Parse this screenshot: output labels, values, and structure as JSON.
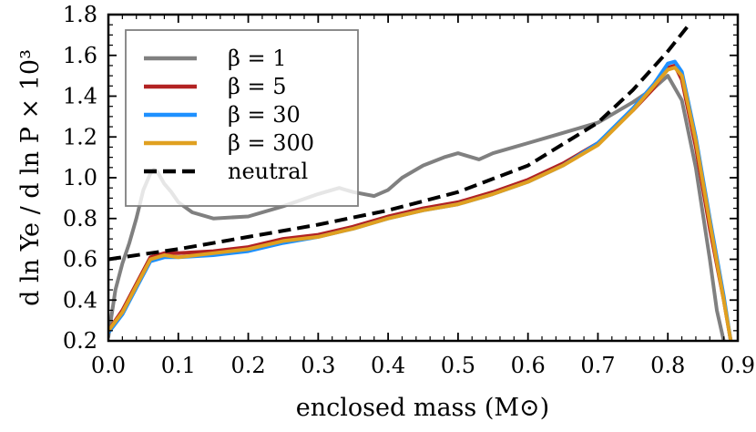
{
  "chart_data": {
    "type": "line",
    "xlabel": "enclosed mass (M⊙)",
    "ylabel": "d ln Ye / d ln P × 10³",
    "xlim": [
      0.0,
      0.9
    ],
    "ylim": [
      0.2,
      1.8
    ],
    "xticks": [
      0.0,
      0.1,
      0.2,
      0.3,
      0.4,
      0.5,
      0.6,
      0.7,
      0.8,
      0.9
    ],
    "xtick_labels": [
      "0.0",
      "0.1",
      "0.2",
      "0.3",
      "0.4",
      "0.5",
      "0.6",
      "0.7",
      "0.8",
      "0.9"
    ],
    "yticks": [
      0.2,
      0.4,
      0.6,
      0.8,
      1.0,
      1.2,
      1.4,
      1.6,
      1.8
    ],
    "ytick_labels": [
      "0.2",
      "0.4",
      "0.6",
      "0.8",
      "1.0",
      "1.2",
      "1.4",
      "1.6",
      "1.8"
    ],
    "grid": false,
    "legend_position": "top-left",
    "series": [
      {
        "name": "β = 1",
        "color": "#808080",
        "style": "solid",
        "x": [
          0.0,
          0.01,
          0.02,
          0.03,
          0.04,
          0.05,
          0.06,
          0.065,
          0.07,
          0.08,
          0.09,
          0.1,
          0.12,
          0.15,
          0.2,
          0.25,
          0.3,
          0.33,
          0.35,
          0.38,
          0.4,
          0.42,
          0.45,
          0.48,
          0.5,
          0.53,
          0.55,
          0.58,
          0.6,
          0.63,
          0.65,
          0.7,
          0.75,
          0.78,
          0.8,
          0.82,
          0.84,
          0.86,
          0.87,
          0.88
        ],
        "y": [
          0.22,
          0.45,
          0.58,
          0.68,
          0.8,
          0.94,
          1.02,
          1.04,
          1.03,
          0.97,
          0.93,
          0.88,
          0.83,
          0.8,
          0.81,
          0.86,
          0.92,
          0.95,
          0.93,
          0.91,
          0.94,
          1.0,
          1.06,
          1.1,
          1.12,
          1.09,
          1.12,
          1.15,
          1.17,
          1.2,
          1.22,
          1.27,
          1.37,
          1.44,
          1.5,
          1.38,
          1.05,
          0.6,
          0.35,
          0.2
        ]
      },
      {
        "name": "β = 5",
        "color": "#b22222",
        "style": "solid",
        "x": [
          0.0,
          0.02,
          0.04,
          0.06,
          0.08,
          0.1,
          0.15,
          0.2,
          0.25,
          0.3,
          0.35,
          0.4,
          0.45,
          0.5,
          0.55,
          0.6,
          0.65,
          0.7,
          0.75,
          0.78,
          0.8,
          0.81,
          0.82,
          0.84,
          0.86,
          0.88,
          0.89
        ],
        "y": [
          0.25,
          0.35,
          0.48,
          0.61,
          0.63,
          0.63,
          0.64,
          0.66,
          0.7,
          0.72,
          0.76,
          0.81,
          0.85,
          0.88,
          0.93,
          0.99,
          1.07,
          1.17,
          1.33,
          1.44,
          1.54,
          1.55,
          1.48,
          1.15,
          0.75,
          0.4,
          0.2
        ]
      },
      {
        "name": "β = 30",
        "color": "#1e90ff",
        "style": "solid",
        "x": [
          0.0,
          0.02,
          0.04,
          0.06,
          0.08,
          0.1,
          0.15,
          0.2,
          0.25,
          0.3,
          0.35,
          0.4,
          0.45,
          0.5,
          0.55,
          0.6,
          0.65,
          0.7,
          0.75,
          0.78,
          0.8,
          0.81,
          0.82,
          0.84,
          0.86,
          0.88,
          0.89
        ],
        "y": [
          0.24,
          0.33,
          0.46,
          0.59,
          0.61,
          0.61,
          0.62,
          0.64,
          0.68,
          0.71,
          0.75,
          0.8,
          0.84,
          0.87,
          0.92,
          0.98,
          1.06,
          1.17,
          1.34,
          1.46,
          1.56,
          1.57,
          1.52,
          1.2,
          0.8,
          0.42,
          0.2
        ]
      },
      {
        "name": "β = 300",
        "color": "#e0a020",
        "style": "solid",
        "x": [
          0.0,
          0.02,
          0.04,
          0.06,
          0.08,
          0.1,
          0.15,
          0.2,
          0.25,
          0.3,
          0.35,
          0.4,
          0.45,
          0.5,
          0.55,
          0.6,
          0.65,
          0.7,
          0.75,
          0.78,
          0.8,
          0.81,
          0.82,
          0.84,
          0.86,
          0.88,
          0.89
        ],
        "y": [
          0.25,
          0.34,
          0.47,
          0.6,
          0.62,
          0.61,
          0.63,
          0.65,
          0.69,
          0.71,
          0.75,
          0.8,
          0.84,
          0.87,
          0.92,
          0.98,
          1.06,
          1.16,
          1.33,
          1.45,
          1.53,
          1.54,
          1.5,
          1.18,
          0.78,
          0.4,
          0.2
        ]
      },
      {
        "name": "neutral",
        "color": "#000000",
        "style": "dashed",
        "x": [
          0.0,
          0.1,
          0.2,
          0.3,
          0.4,
          0.5,
          0.6,
          0.7,
          0.75,
          0.8,
          0.83
        ],
        "y": [
          0.6,
          0.65,
          0.71,
          0.77,
          0.84,
          0.93,
          1.06,
          1.27,
          1.43,
          1.62,
          1.75
        ]
      }
    ]
  }
}
